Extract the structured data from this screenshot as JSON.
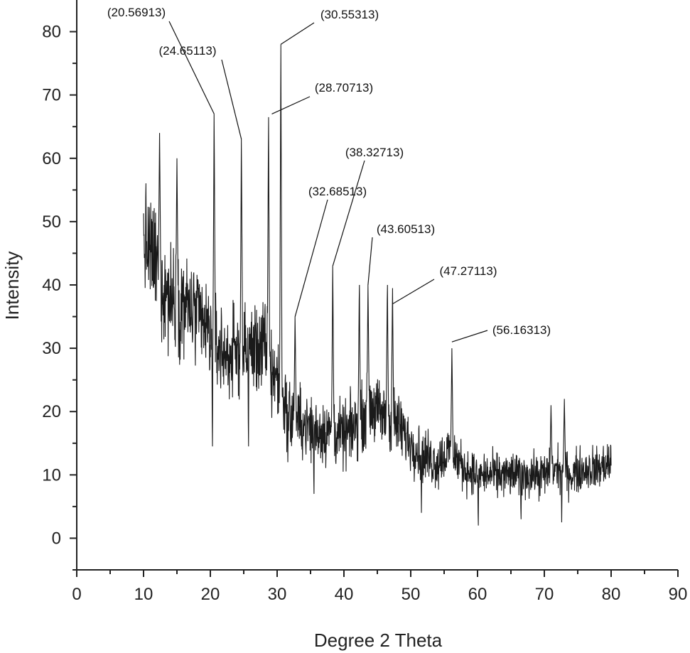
{
  "chart_data": {
    "type": "line",
    "xlabel": "Degree 2 Theta",
    "ylabel": "Intensity",
    "xlim": [
      0,
      90
    ],
    "ylim": [
      -5,
      85
    ],
    "x_ticks": [
      0,
      10,
      20,
      30,
      40,
      50,
      60,
      70,
      80,
      90
    ],
    "y_ticks": [
      0,
      10,
      20,
      30,
      40,
      50,
      60,
      70,
      80
    ],
    "grid": false,
    "color": "#1a1a1a",
    "envelope": [
      [
        10,
        47,
        10
      ],
      [
        11,
        45,
        10
      ],
      [
        12,
        43,
        11
      ],
      [
        13,
        40,
        11
      ],
      [
        14,
        38,
        10
      ],
      [
        16,
        37,
        10
      ],
      [
        18,
        35,
        9
      ],
      [
        20,
        32,
        9
      ],
      [
        22,
        29,
        8
      ],
      [
        24,
        29,
        8
      ],
      [
        26,
        30,
        8
      ],
      [
        28,
        30,
        9
      ],
      [
        30,
        25,
        8
      ],
      [
        32,
        19,
        7
      ],
      [
        34,
        18,
        6
      ],
      [
        36,
        17,
        6
      ],
      [
        38,
        17,
        6
      ],
      [
        40,
        16,
        6
      ],
      [
        42,
        18,
        6
      ],
      [
        44,
        21,
        6
      ],
      [
        46,
        19,
        6
      ],
      [
        48,
        18,
        6
      ],
      [
        50,
        15,
        5
      ],
      [
        52,
        13,
        5
      ],
      [
        54,
        12,
        5
      ],
      [
        56,
        14,
        5
      ],
      [
        58,
        11,
        4
      ],
      [
        60,
        10,
        4
      ],
      [
        62,
        10,
        4
      ],
      [
        64,
        10,
        4
      ],
      [
        66,
        10,
        4
      ],
      [
        68,
        10,
        4
      ],
      [
        70,
        10,
        4
      ],
      [
        72,
        11,
        4
      ],
      [
        74,
        10,
        4
      ],
      [
        76,
        11,
        4
      ],
      [
        78,
        11,
        4
      ],
      [
        80,
        12,
        4
      ]
    ],
    "peaks": [
      {
        "x": 12.4,
        "y": 64
      },
      {
        "x": 15.0,
        "y": 60
      },
      {
        "x": 20.569,
        "y": 67
      },
      {
        "x": 24.651,
        "y": 63
      },
      {
        "x": 28.707,
        "y": 66.5
      },
      {
        "x": 30.553,
        "y": 78
      },
      {
        "x": 32.685,
        "y": 35
      },
      {
        "x": 38.327,
        "y": 43
      },
      {
        "x": 42.3,
        "y": 40
      },
      {
        "x": 43.605,
        "y": 40
      },
      {
        "x": 46.5,
        "y": 40
      },
      {
        "x": 47.271,
        "y": 39.5
      },
      {
        "x": 56.163,
        "y": 30
      },
      {
        "x": 73.0,
        "y": 22
      },
      {
        "x": 71.0,
        "y": 21
      }
    ],
    "dips": [
      {
        "x": 20.3,
        "y": 14.5
      },
      {
        "x": 25.7,
        "y": 14.5
      },
      {
        "x": 29.2,
        "y": 19
      },
      {
        "x": 31.6,
        "y": 12
      },
      {
        "x": 35.5,
        "y": 7
      },
      {
        "x": 51.6,
        "y": 4
      },
      {
        "x": 60.1,
        "y": 2
      },
      {
        "x": 72.6,
        "y": 2.5
      },
      {
        "x": 66.5,
        "y": 3
      }
    ],
    "annotations": [
      {
        "text": "(20.56913)",
        "x": 20.569,
        "y": 67
      },
      {
        "text": "(24.65113)",
        "x": 24.651,
        "y": 63
      },
      {
        "text": "(30.55313)",
        "x": 30.553,
        "y": 78
      },
      {
        "text": "(28.70713)",
        "x": 29.2,
        "y": 67
      },
      {
        "text": "(38.32713)",
        "x": 38.327,
        "y": 43
      },
      {
        "text": "(32.68513)",
        "x": 32.685,
        "y": 35
      },
      {
        "text": "(43.60513)",
        "x": 43.605,
        "y": 40
      },
      {
        "text": "(47.27113)",
        "x": 47.271,
        "y": 37
      },
      {
        "text": "(56.16313)",
        "x": 56.163,
        "y": 31
      }
    ]
  }
}
